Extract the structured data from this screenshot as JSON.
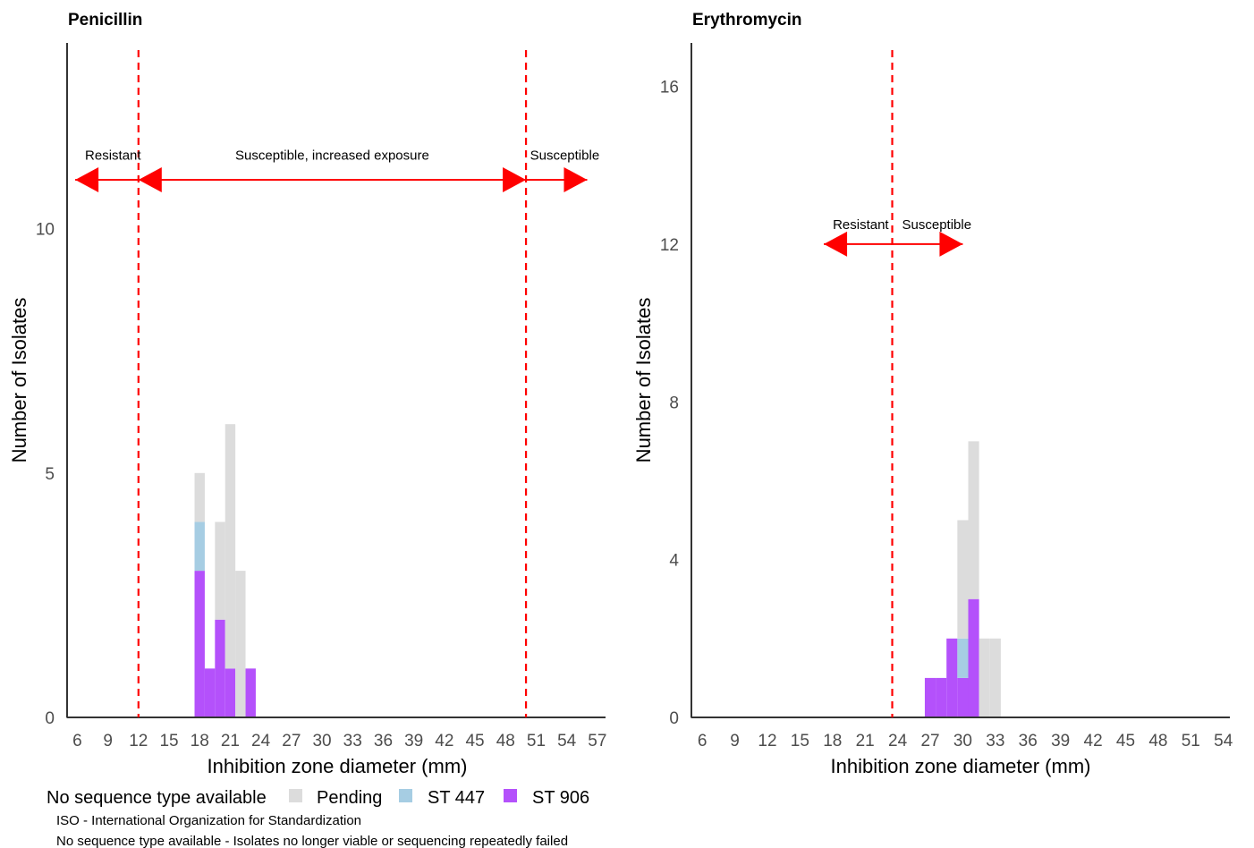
{
  "legend": {
    "items": [
      {
        "label": "No sequence type available",
        "color": "#ffffff"
      },
      {
        "label": "Pending",
        "color": "#dcdcdc"
      },
      {
        "label": "ST 447",
        "color": "#a6cde3"
      },
      {
        "label": "ST 906",
        "color": "#b451fb"
      }
    ]
  },
  "notes": [
    "ISO - International Organization for Standardization",
    "No sequence type available - Isolates no longer viable or sequencing repeatedly failed"
  ],
  "colors": {
    "breakpoint": "#ff0000",
    "axis": "#333333"
  },
  "chart_data": [
    {
      "type": "bar",
      "stacked": true,
      "title": "Penicillin",
      "xlabel": "Inhibition zone diameter (mm)",
      "ylabel": "Number of Isolates",
      "xlim": [
        5,
        57.8
      ],
      "ylim": [
        0,
        13.8
      ],
      "x_ticks": [
        6,
        9,
        12,
        15,
        18,
        21,
        24,
        27,
        30,
        33,
        36,
        39,
        42,
        45,
        48,
        51,
        54,
        57
      ],
      "y_ticks": [
        0,
        5,
        10
      ],
      "bin_width": 1,
      "series": [
        {
          "name": "ST 906",
          "color": "#b451fb",
          "x": [
            18,
            19,
            20,
            21,
            23
          ],
          "values": [
            3,
            1,
            2,
            1,
            1
          ]
        },
        {
          "name": "ST 447",
          "color": "#a6cde3",
          "x": [
            18
          ],
          "values": [
            1
          ]
        },
        {
          "name": "Pending",
          "color": "#dcdcdc",
          "x": [
            18,
            20,
            21,
            22
          ],
          "values": [
            1,
            2,
            5,
            3
          ]
        }
      ],
      "breakpoints": [
        12,
        50
      ],
      "annotations": [
        {
          "label": "Resistant",
          "x": 9.5,
          "y": 11.5
        },
        {
          "label": "Susceptible, increased exposure",
          "x": 31,
          "y": 11.5
        },
        {
          "label": "Susceptible",
          "x": 53.8,
          "y": 11.5
        }
      ],
      "arrows": [
        {
          "from": 12,
          "to": 5.8,
          "y": 11
        },
        {
          "from": 12,
          "to": 50,
          "y": 11,
          "both": true
        },
        {
          "from": 50,
          "to": 56,
          "y": 11
        }
      ],
      "grid": false
    },
    {
      "type": "bar",
      "stacked": true,
      "title": "Erythromycin",
      "xlabel": "Inhibition zone diameter (mm)",
      "ylabel": "Number of Isolates",
      "xlim": [
        5,
        54.6
      ],
      "ylim": [
        0,
        17.1
      ],
      "x_ticks": [
        6,
        9,
        12,
        15,
        18,
        21,
        24,
        27,
        30,
        33,
        36,
        39,
        42,
        45,
        48,
        51,
        54
      ],
      "y_ticks": [
        0,
        4,
        8,
        12,
        16
      ],
      "bin_width": 1,
      "series": [
        {
          "name": "ST 906",
          "color": "#b451fb",
          "x": [
            27,
            28,
            29,
            30,
            31
          ],
          "values": [
            1,
            1,
            2,
            1,
            3
          ]
        },
        {
          "name": "ST 447",
          "color": "#a6cde3",
          "x": [
            30
          ],
          "values": [
            1
          ]
        },
        {
          "name": "Pending",
          "color": "#dcdcdc",
          "x": [
            30,
            31,
            32,
            33
          ],
          "values": [
            3,
            4,
            2,
            2
          ]
        }
      ],
      "breakpoints": [
        23.5
      ],
      "annotations": [
        {
          "label": "Resistant",
          "x": 20.6,
          "y": 12.5
        },
        {
          "label": "Susceptible",
          "x": 27.6,
          "y": 12.5
        }
      ],
      "arrows": [
        {
          "from": 23.5,
          "to": 17.2,
          "y": 12
        },
        {
          "from": 23.5,
          "to": 30,
          "y": 12
        }
      ],
      "grid": false
    }
  ]
}
